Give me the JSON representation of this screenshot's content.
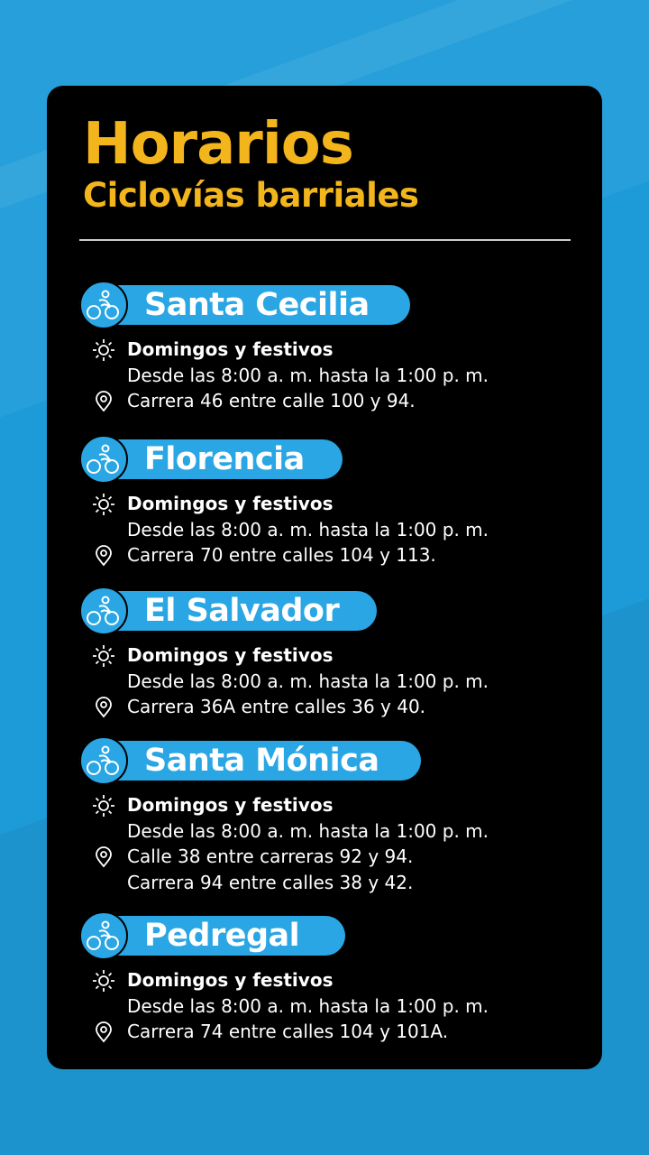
{
  "header": {
    "title": "Horarios",
    "subtitle": "Ciclovías barriales"
  },
  "colors": {
    "background": "#1d9bd8",
    "card": "#000000",
    "title": "#f2b51c",
    "pill": "#29a6e3"
  },
  "icons": {
    "pill": "cyclist-icon",
    "schedule": "sun-icon",
    "address": "location-pin-icon"
  },
  "sections": [
    {
      "name": "Santa Cecilia",
      "days": "Domingos y festivos",
      "hours": "Desde las 8:00 a. m. hasta la 1:00 p. m.",
      "address": [
        "Carrera 46 entre calle 100 y 94."
      ]
    },
    {
      "name": "Florencia",
      "days": "Domingos y festivos",
      "hours": "Desde las 8:00 a. m. hasta la 1:00 p. m.",
      "address": [
        "Carrera 70 entre calles 104 y 113."
      ]
    },
    {
      "name": "El Salvador",
      "days": "Domingos y festivos",
      "hours": "Desde las 8:00 a. m. hasta la 1:00 p. m.",
      "address": [
        "Carrera 36A entre calles 36 y 40."
      ]
    },
    {
      "name": "Santa Mónica",
      "days": "Domingos y festivos",
      "hours": "Desde las 8:00 a. m. hasta la 1:00 p. m.",
      "address": [
        "Calle 38 entre carreras 92 y 94.",
        "Carrera 94 entre calles 38 y 42."
      ]
    },
    {
      "name": "Pedregal",
      "days": "Domingos y festivos",
      "hours": "Desde las 8:00 a. m. hasta la 1:00 p. m.",
      "address": [
        "Carrera 74 entre calles 104 y 101A."
      ]
    }
  ]
}
